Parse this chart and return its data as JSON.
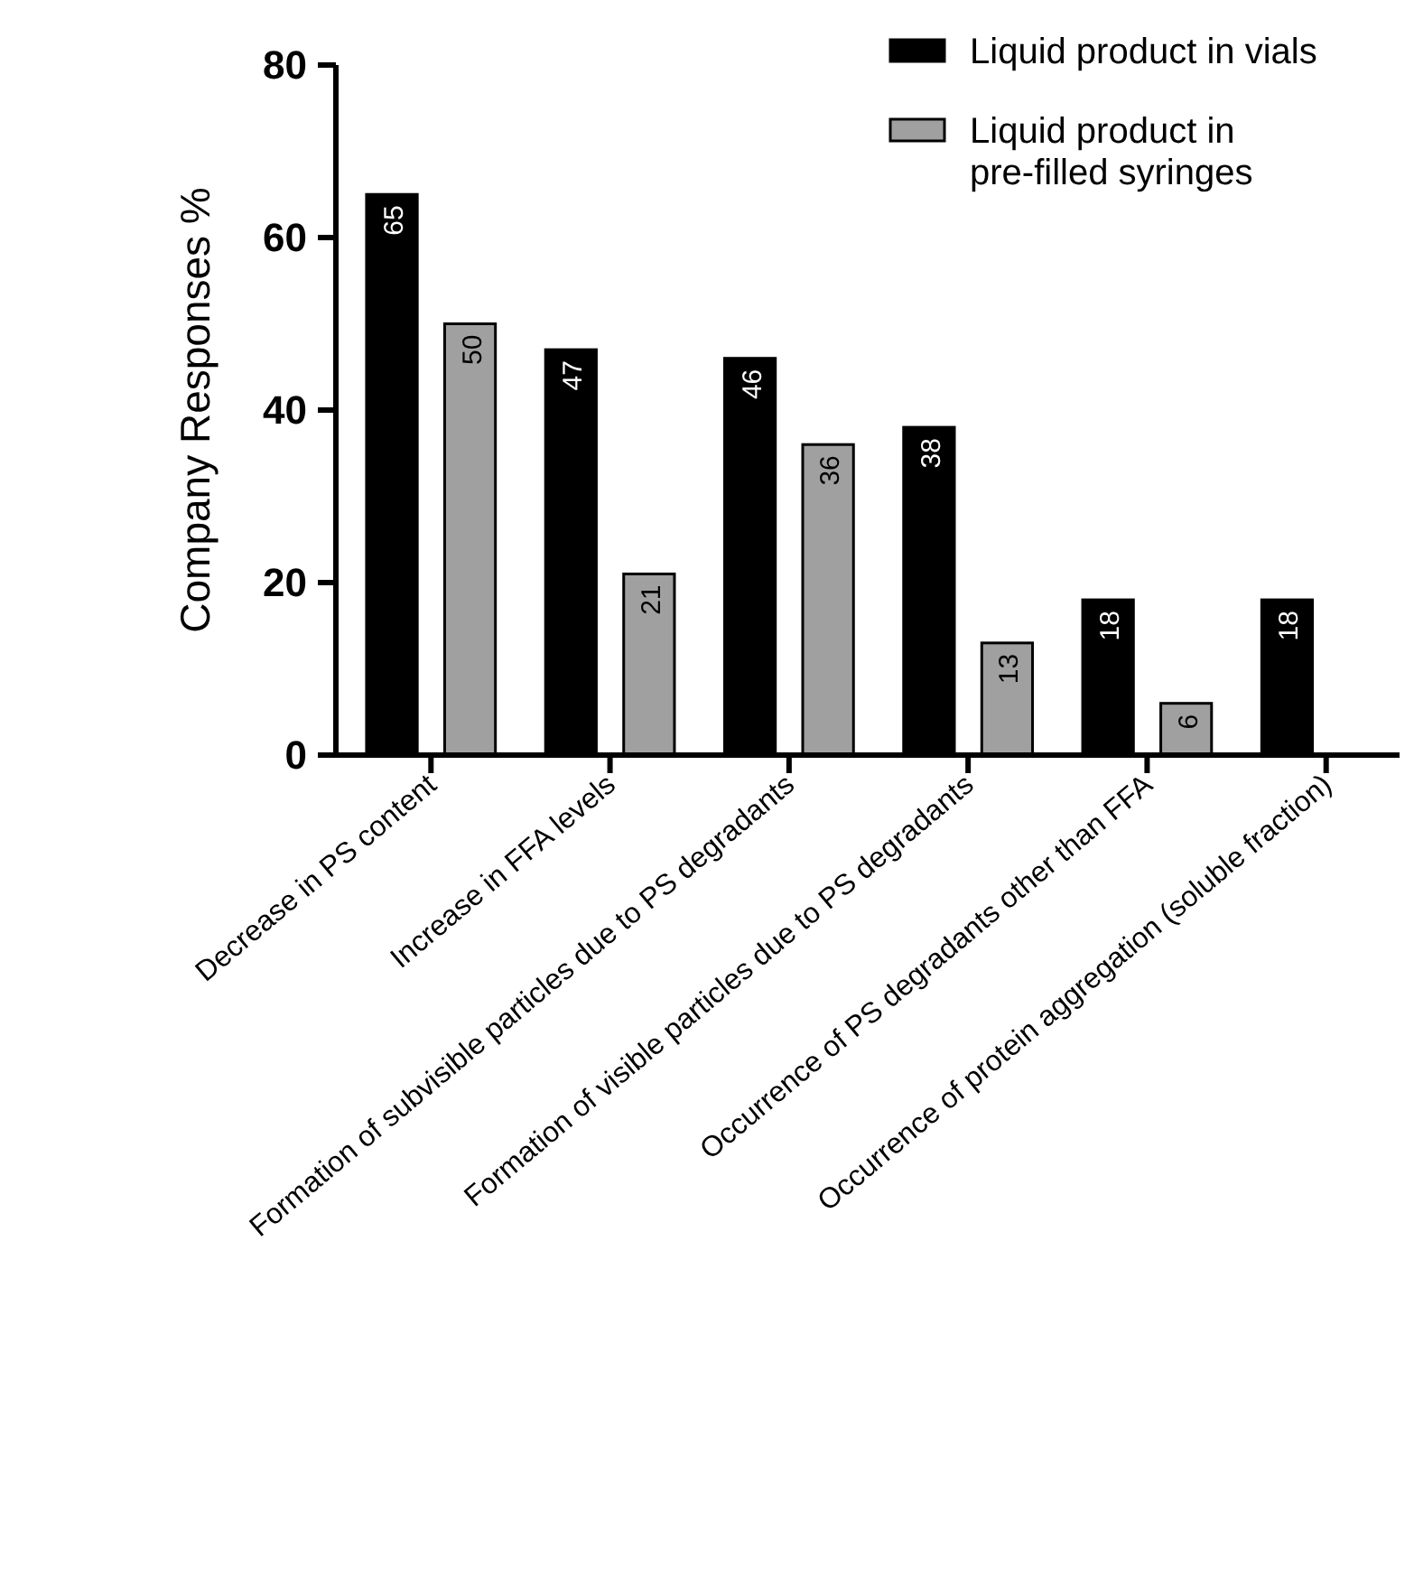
{
  "chart_data": {
    "type": "bar",
    "ylabel": "Company Responses %",
    "categories": [
      "Decrease in PS content",
      "Increase in FFA levels",
      "Formation of subvisible particles due to PS degradants",
      "Formation of visible particles due to PS degradants",
      "Occurrence of PS degradants other than FFA",
      "Occurrence of protein aggregation  (soluble fraction)"
    ],
    "series": [
      {
        "name": "Liquid product in vials",
        "color": "#000000",
        "values": [
          65,
          47,
          46,
          38,
          18,
          18
        ]
      },
      {
        "name": "Liquid product in pre-filled syringes",
        "color": "#a0a0a0",
        "values": [
          50,
          21,
          36,
          13,
          6,
          null
        ]
      }
    ],
    "ylim": [
      0,
      80
    ],
    "yticks": [
      0,
      20,
      40,
      60,
      80
    ],
    "data_labels": true,
    "legend": "top right",
    "grid": false
  }
}
